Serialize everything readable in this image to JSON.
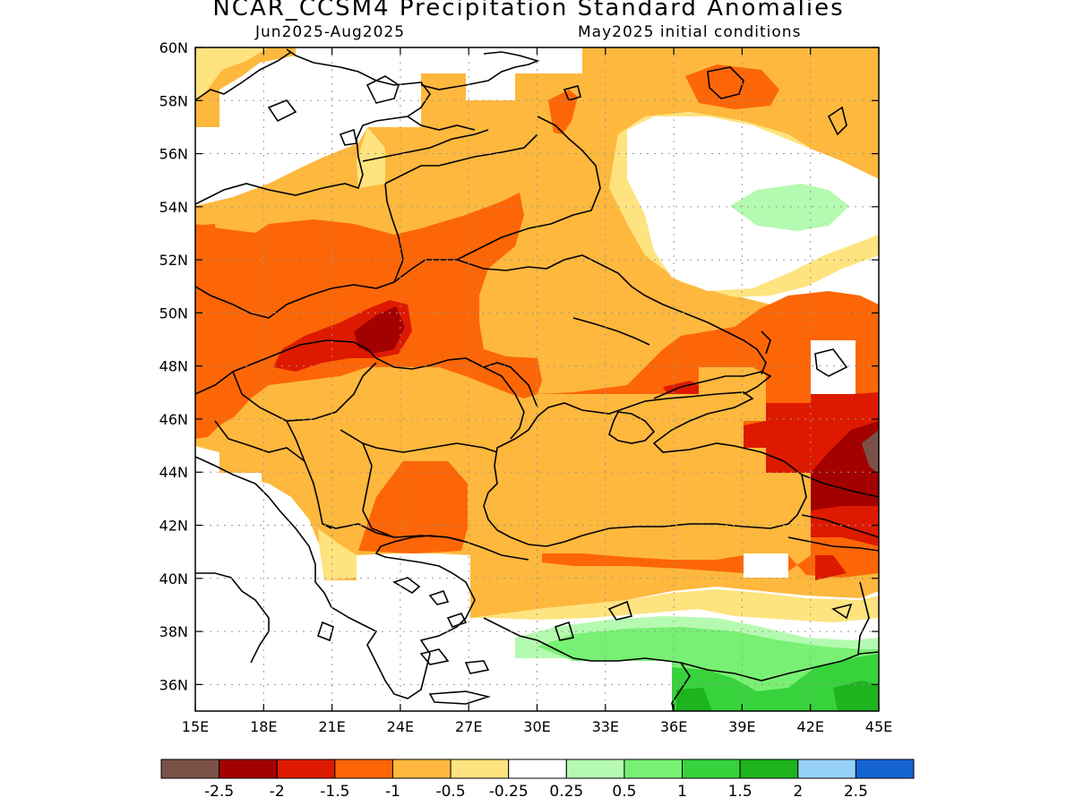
{
  "header": {
    "title": "NCAR_CCSM4 Precipitation Standard Anomalies",
    "period": "Jun2025-Aug2025",
    "init": "May2025 initial conditions"
  },
  "map": {
    "lon_range": [
      15,
      45
    ],
    "lat_range": [
      35,
      60
    ],
    "lon_ticks": [
      "15E",
      "18E",
      "21E",
      "24E",
      "27E",
      "30E",
      "33E",
      "36E",
      "39E",
      "42E",
      "45E"
    ],
    "lat_ticks": [
      "36N",
      "38N",
      "40N",
      "42N",
      "44N",
      "46N",
      "48N",
      "50N",
      "52N",
      "54N",
      "56N",
      "58N",
      "60N"
    ],
    "grid": true
  },
  "colors": {
    "lt_m2_5": "#7b5147",
    "m2_5_m2": "#a30000",
    "m2_m1_5": "#dd1a00",
    "m1_5_m1": "#fd6607",
    "m1_m0_5": "#fdb83d",
    "m0_5_m0_25": "#fee37f",
    "neutral": "#ffffff",
    "p0_25_p0_5": "#b5fab1",
    "p0_5_p1": "#78f073",
    "p1_p1_5": "#37d23c",
    "p1_5_p2": "#1eb41e",
    "p2_p2_5": "#96d2fa",
    "gt_p2_5": "#1464d2"
  },
  "legend": {
    "labels": [
      "-2.5",
      "-2",
      "-1.5",
      "-1",
      "-0.5",
      "-0.25",
      "0.25",
      "0.5",
      "1",
      "1.5",
      "2",
      "2.5"
    ],
    "colors": [
      "#7b5147",
      "#a30000",
      "#dd1a00",
      "#fd6607",
      "#fdb83d",
      "#fee37f",
      "#ffffff",
      "#b5fab1",
      "#78f073",
      "#37d23c",
      "#1eb41e",
      "#96d2fa",
      "#1464d2"
    ]
  }
}
